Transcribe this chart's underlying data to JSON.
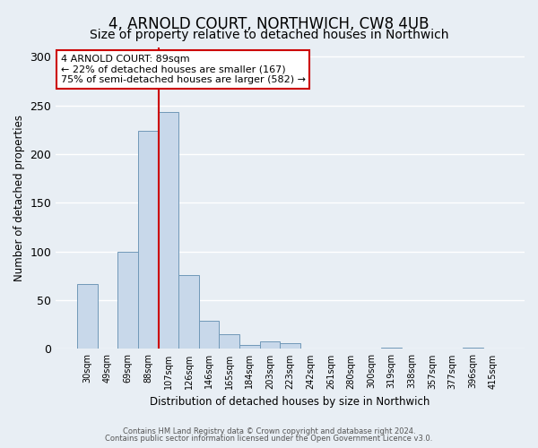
{
  "title": "4, ARNOLD COURT, NORTHWICH, CW8 4UB",
  "subtitle": "Size of property relative to detached houses in Northwich",
  "xlabel": "Distribution of detached houses by size in Northwich",
  "ylabel": "Number of detached properties",
  "bar_values": [
    67,
    0,
    100,
    224,
    243,
    76,
    29,
    15,
    4,
    8,
    6,
    0,
    0,
    0,
    0,
    1,
    0,
    0,
    0,
    1,
    0
  ],
  "bin_labels": [
    "30sqm",
    "49sqm",
    "69sqm",
    "88sqm",
    "107sqm",
    "126sqm",
    "146sqm",
    "165sqm",
    "184sqm",
    "203sqm",
    "223sqm",
    "242sqm",
    "261sqm",
    "280sqm",
    "300sqm",
    "319sqm",
    "338sqm",
    "357sqm",
    "377sqm",
    "396sqm",
    "415sqm"
  ],
  "bar_color": "#c8d8ea",
  "bar_edge_color": "#7098b8",
  "vline_color": "#cc0000",
  "annotation_title": "4 ARNOLD COURT: 89sqm",
  "annotation_line1": "← 22% of detached houses are smaller (167)",
  "annotation_line2": "75% of semi-detached houses are larger (582) →",
  "annotation_box_color": "#ffffff",
  "annotation_box_edge_color": "#cc0000",
  "ylim": [
    0,
    310
  ],
  "yticks": [
    0,
    50,
    100,
    150,
    200,
    250,
    300
  ],
  "footer1": "Contains HM Land Registry data © Crown copyright and database right 2024.",
  "footer2": "Contains public sector information licensed under the Open Government Licence v3.0.",
  "bg_color": "#e8eef4",
  "plot_bg_color": "#e8eef4",
  "title_fontsize": 12,
  "subtitle_fontsize": 10
}
